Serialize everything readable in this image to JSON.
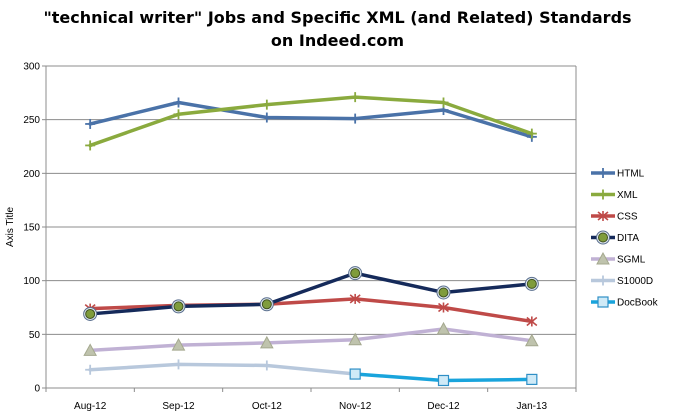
{
  "chart_data": {
    "type": "line",
    "title_lines": [
      "\"technical writer\" Jobs and Specific XML (and Related) Standards",
      "on Indeed.com"
    ],
    "xlabel": "",
    "ylabel": "Axis Title",
    "categories": [
      "Aug-12",
      "Sep-12",
      "Oct-12",
      "Nov-12",
      "Dec-12",
      "Jan-13"
    ],
    "ylim": [
      0,
      300
    ],
    "yticks": [
      0,
      50,
      100,
      150,
      200,
      250,
      300
    ],
    "grid": true,
    "legend_position": "right",
    "series": [
      {
        "name": "HTML",
        "color": "#4a72a8",
        "marker": "plus",
        "values": [
          246,
          266,
          252,
          251,
          259,
          234
        ]
      },
      {
        "name": "XML",
        "color": "#8aaa3e",
        "marker": "plus",
        "values": [
          226,
          255,
          264,
          271,
          266,
          237
        ]
      },
      {
        "name": "CSS",
        "color": "#bf4a48",
        "marker": "star",
        "values": [
          74,
          77,
          78,
          83,
          75,
          62
        ]
      },
      {
        "name": "DITA",
        "color": "#152a5a",
        "marker": "circle",
        "values": [
          69,
          76,
          78,
          107,
          89,
          97
        ]
      },
      {
        "name": "SGML",
        "color": "#c0b1d4",
        "marker": "triangle",
        "values": [
          35,
          40,
          42,
          45,
          55,
          44
        ]
      },
      {
        "name": "S1000D",
        "color": "#b8c8dc",
        "marker": "plus",
        "values": [
          17,
          22,
          21,
          13,
          null,
          null
        ]
      },
      {
        "name": "DocBook",
        "color": "#19a4dc",
        "marker": "square",
        "values": [
          null,
          null,
          null,
          13,
          7,
          8
        ]
      }
    ]
  }
}
